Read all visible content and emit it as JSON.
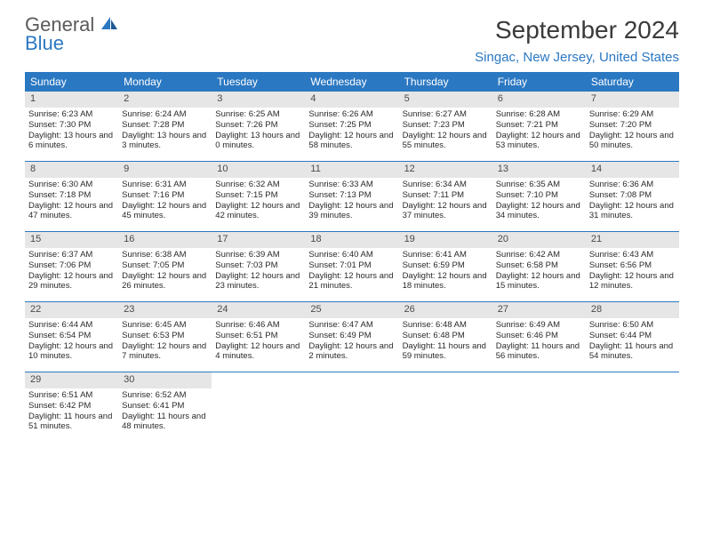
{
  "logo": {
    "text_top": "General",
    "text_bottom": "Blue"
  },
  "title": "September 2024",
  "location": "Singac, New Jersey, United States",
  "colors": {
    "header_bg": "#2b78c2",
    "header_text": "#ffffff",
    "daynum_bg": "#e6e6e6",
    "border": "#2b78c2",
    "logo_gray": "#5a5a5a",
    "logo_blue": "#2b78c2"
  },
  "day_labels": [
    "Sunday",
    "Monday",
    "Tuesday",
    "Wednesday",
    "Thursday",
    "Friday",
    "Saturday"
  ],
  "weeks": [
    [
      {
        "n": "1",
        "sunrise": "Sunrise: 6:23 AM",
        "sunset": "Sunset: 7:30 PM",
        "daylight": "Daylight: 13 hours and 6 minutes."
      },
      {
        "n": "2",
        "sunrise": "Sunrise: 6:24 AM",
        "sunset": "Sunset: 7:28 PM",
        "daylight": "Daylight: 13 hours and 3 minutes."
      },
      {
        "n": "3",
        "sunrise": "Sunrise: 6:25 AM",
        "sunset": "Sunset: 7:26 PM",
        "daylight": "Daylight: 13 hours and 0 minutes."
      },
      {
        "n": "4",
        "sunrise": "Sunrise: 6:26 AM",
        "sunset": "Sunset: 7:25 PM",
        "daylight": "Daylight: 12 hours and 58 minutes."
      },
      {
        "n": "5",
        "sunrise": "Sunrise: 6:27 AM",
        "sunset": "Sunset: 7:23 PM",
        "daylight": "Daylight: 12 hours and 55 minutes."
      },
      {
        "n": "6",
        "sunrise": "Sunrise: 6:28 AM",
        "sunset": "Sunset: 7:21 PM",
        "daylight": "Daylight: 12 hours and 53 minutes."
      },
      {
        "n": "7",
        "sunrise": "Sunrise: 6:29 AM",
        "sunset": "Sunset: 7:20 PM",
        "daylight": "Daylight: 12 hours and 50 minutes."
      }
    ],
    [
      {
        "n": "8",
        "sunrise": "Sunrise: 6:30 AM",
        "sunset": "Sunset: 7:18 PM",
        "daylight": "Daylight: 12 hours and 47 minutes."
      },
      {
        "n": "9",
        "sunrise": "Sunrise: 6:31 AM",
        "sunset": "Sunset: 7:16 PM",
        "daylight": "Daylight: 12 hours and 45 minutes."
      },
      {
        "n": "10",
        "sunrise": "Sunrise: 6:32 AM",
        "sunset": "Sunset: 7:15 PM",
        "daylight": "Daylight: 12 hours and 42 minutes."
      },
      {
        "n": "11",
        "sunrise": "Sunrise: 6:33 AM",
        "sunset": "Sunset: 7:13 PM",
        "daylight": "Daylight: 12 hours and 39 minutes."
      },
      {
        "n": "12",
        "sunrise": "Sunrise: 6:34 AM",
        "sunset": "Sunset: 7:11 PM",
        "daylight": "Daylight: 12 hours and 37 minutes."
      },
      {
        "n": "13",
        "sunrise": "Sunrise: 6:35 AM",
        "sunset": "Sunset: 7:10 PM",
        "daylight": "Daylight: 12 hours and 34 minutes."
      },
      {
        "n": "14",
        "sunrise": "Sunrise: 6:36 AM",
        "sunset": "Sunset: 7:08 PM",
        "daylight": "Daylight: 12 hours and 31 minutes."
      }
    ],
    [
      {
        "n": "15",
        "sunrise": "Sunrise: 6:37 AM",
        "sunset": "Sunset: 7:06 PM",
        "daylight": "Daylight: 12 hours and 29 minutes."
      },
      {
        "n": "16",
        "sunrise": "Sunrise: 6:38 AM",
        "sunset": "Sunset: 7:05 PM",
        "daylight": "Daylight: 12 hours and 26 minutes."
      },
      {
        "n": "17",
        "sunrise": "Sunrise: 6:39 AM",
        "sunset": "Sunset: 7:03 PM",
        "daylight": "Daylight: 12 hours and 23 minutes."
      },
      {
        "n": "18",
        "sunrise": "Sunrise: 6:40 AM",
        "sunset": "Sunset: 7:01 PM",
        "daylight": "Daylight: 12 hours and 21 minutes."
      },
      {
        "n": "19",
        "sunrise": "Sunrise: 6:41 AM",
        "sunset": "Sunset: 6:59 PM",
        "daylight": "Daylight: 12 hours and 18 minutes."
      },
      {
        "n": "20",
        "sunrise": "Sunrise: 6:42 AM",
        "sunset": "Sunset: 6:58 PM",
        "daylight": "Daylight: 12 hours and 15 minutes."
      },
      {
        "n": "21",
        "sunrise": "Sunrise: 6:43 AM",
        "sunset": "Sunset: 6:56 PM",
        "daylight": "Daylight: 12 hours and 12 minutes."
      }
    ],
    [
      {
        "n": "22",
        "sunrise": "Sunrise: 6:44 AM",
        "sunset": "Sunset: 6:54 PM",
        "daylight": "Daylight: 12 hours and 10 minutes."
      },
      {
        "n": "23",
        "sunrise": "Sunrise: 6:45 AM",
        "sunset": "Sunset: 6:53 PM",
        "daylight": "Daylight: 12 hours and 7 minutes."
      },
      {
        "n": "24",
        "sunrise": "Sunrise: 6:46 AM",
        "sunset": "Sunset: 6:51 PM",
        "daylight": "Daylight: 12 hours and 4 minutes."
      },
      {
        "n": "25",
        "sunrise": "Sunrise: 6:47 AM",
        "sunset": "Sunset: 6:49 PM",
        "daylight": "Daylight: 12 hours and 2 minutes."
      },
      {
        "n": "26",
        "sunrise": "Sunrise: 6:48 AM",
        "sunset": "Sunset: 6:48 PM",
        "daylight": "Daylight: 11 hours and 59 minutes."
      },
      {
        "n": "27",
        "sunrise": "Sunrise: 6:49 AM",
        "sunset": "Sunset: 6:46 PM",
        "daylight": "Daylight: 11 hours and 56 minutes."
      },
      {
        "n": "28",
        "sunrise": "Sunrise: 6:50 AM",
        "sunset": "Sunset: 6:44 PM",
        "daylight": "Daylight: 11 hours and 54 minutes."
      }
    ],
    [
      {
        "n": "29",
        "sunrise": "Sunrise: 6:51 AM",
        "sunset": "Sunset: 6:42 PM",
        "daylight": "Daylight: 11 hours and 51 minutes."
      },
      {
        "n": "30",
        "sunrise": "Sunrise: 6:52 AM",
        "sunset": "Sunset: 6:41 PM",
        "daylight": "Daylight: 11 hours and 48 minutes."
      },
      null,
      null,
      null,
      null,
      null
    ]
  ]
}
